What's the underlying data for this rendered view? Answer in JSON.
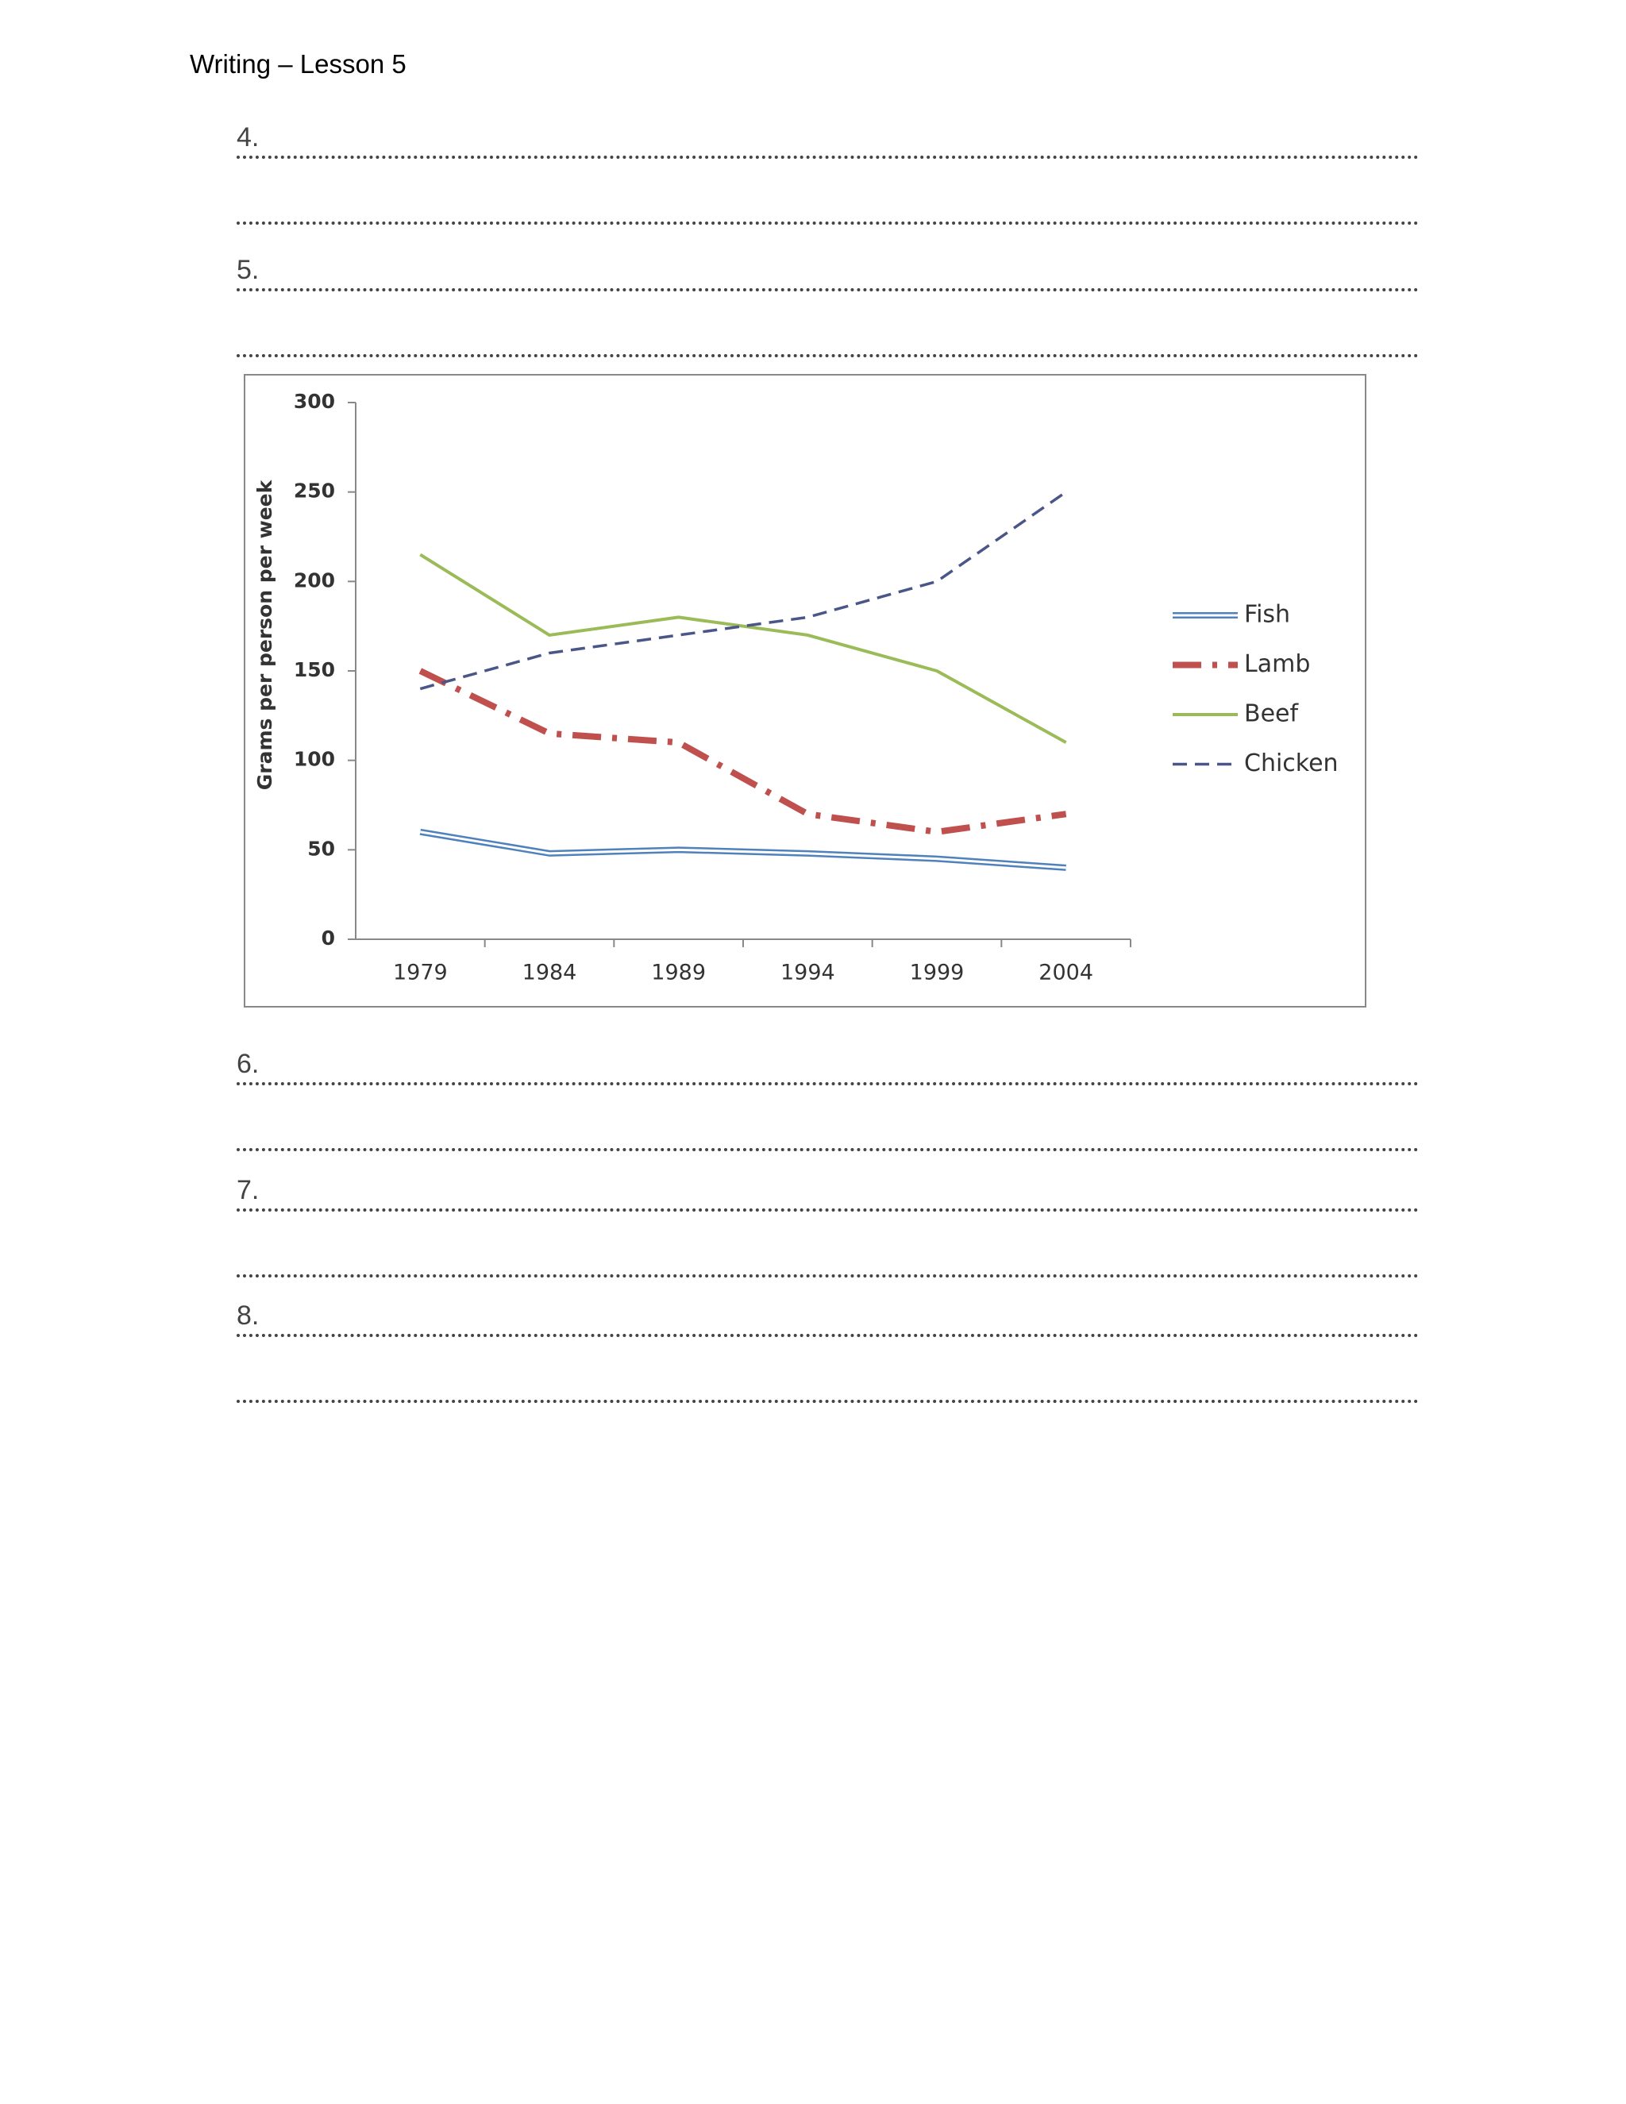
{
  "header": {
    "title": "Writing – Lesson 5"
  },
  "questions": [
    {
      "label": "4."
    },
    {
      "label": "5."
    },
    {
      "label": "6."
    },
    {
      "label": "7."
    },
    {
      "label": "8."
    }
  ],
  "chart_data": {
    "type": "line",
    "y_label": "Grams per person per week",
    "categories": [
      "1979",
      "1984",
      "1989",
      "1994",
      "1999",
      "2004"
    ],
    "series": [
      {
        "name": "Fish",
        "color": "#4f81bd",
        "style": "double",
        "values": [
          60,
          48,
          50,
          48,
          45,
          40
        ]
      },
      {
        "name": "Lamb",
        "color": "#c0504d",
        "style": "dashdot",
        "values": [
          150,
          115,
          110,
          70,
          60,
          70
        ]
      },
      {
        "name": "Beef",
        "color": "#9bbb59",
        "style": "solid",
        "values": [
          215,
          170,
          180,
          170,
          150,
          110
        ]
      },
      {
        "name": "Chicken",
        "color": "#4a5688",
        "style": "dashed",
        "values": [
          140,
          160,
          170,
          180,
          200,
          250
        ]
      }
    ],
    "ylim": [
      0,
      300
    ],
    "yticks": [
      0,
      50,
      100,
      150,
      200,
      250,
      300
    ],
    "grid": false,
    "legend": "right"
  }
}
